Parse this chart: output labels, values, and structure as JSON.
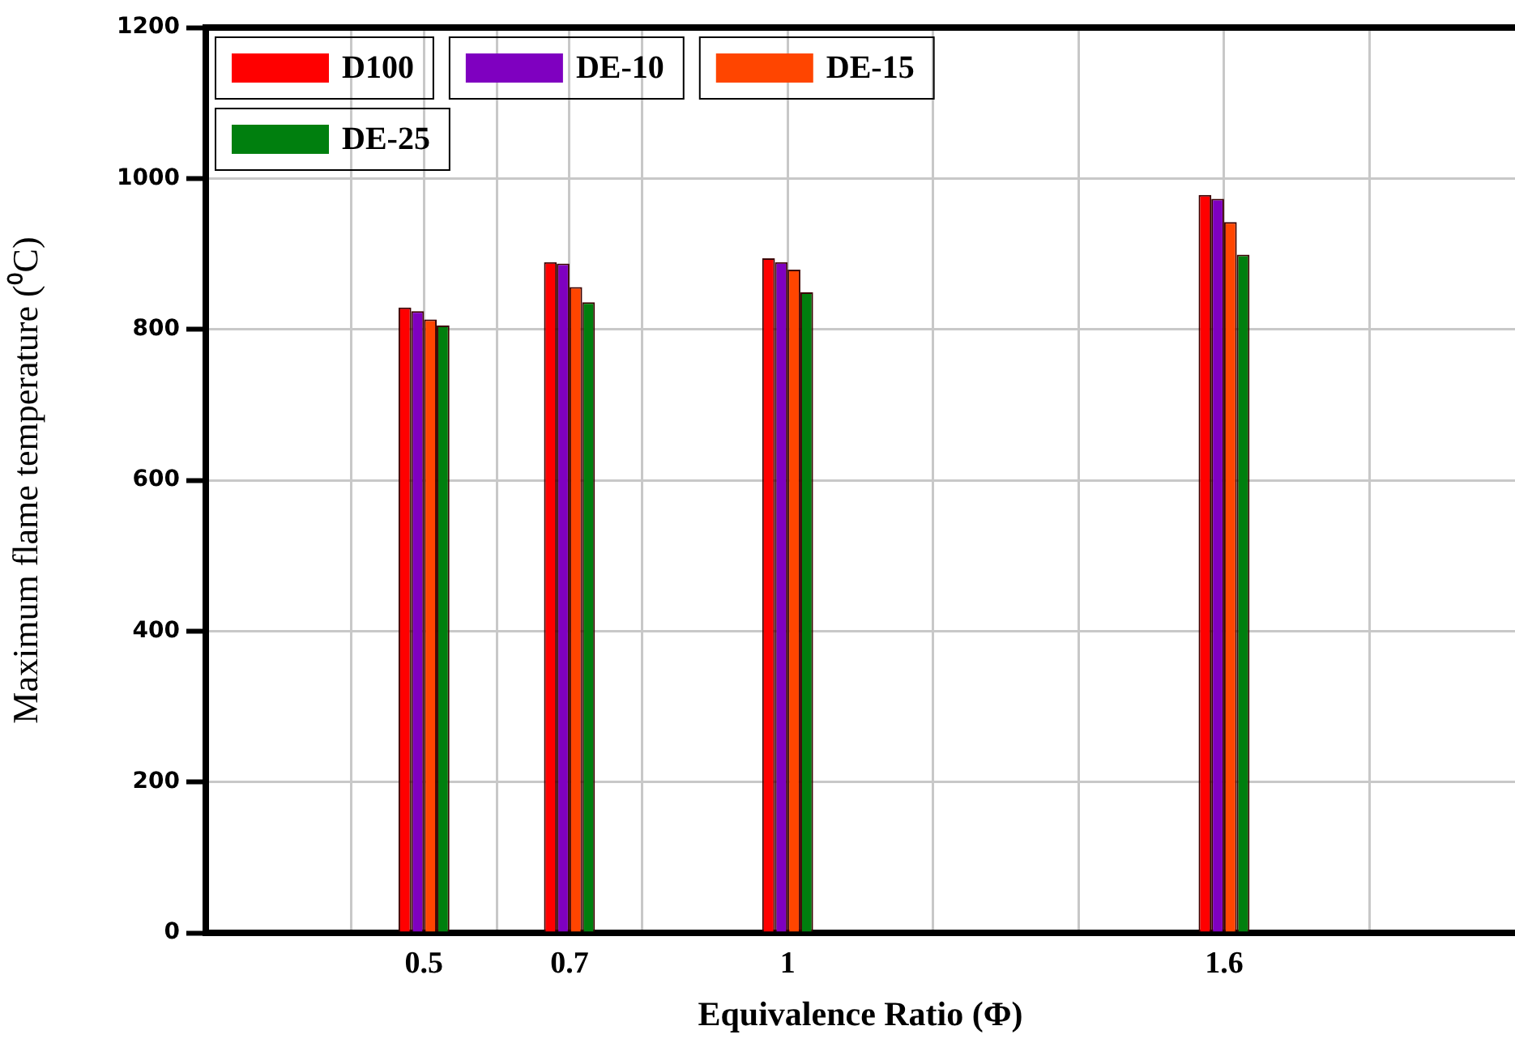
{
  "chart_data": {
    "type": "bar",
    "xlabel": "Equivalence Ratio (Φ)",
    "ylabel": "Maximum flame temperature (⁰C)",
    "x": [
      0.5,
      0.7,
      1,
      1.6
    ],
    "series": [
      {
        "name": "D100",
        "color": "#ff0000",
        "values": [
          829,
          889,
          894,
          978
        ]
      },
      {
        "name": "DE-10",
        "color": "#7f00c0",
        "values": [
          824,
          887,
          889,
          973
        ]
      },
      {
        "name": "DE-15",
        "color": "#ff4500",
        "values": [
          813,
          856,
          879,
          942
        ]
      },
      {
        "name": "DE-25",
        "color": "#007f0e",
        "values": [
          805,
          836,
          849,
          899
        ]
      }
    ],
    "xlim": [
      0.2,
      2.0
    ],
    "xticks": [
      {
        "value": 0.4,
        "label": null
      },
      {
        "value": 0.5,
        "label": "0.5"
      },
      {
        "value": 0.6,
        "label": null
      },
      {
        "value": 0.7,
        "label": "0.7"
      },
      {
        "value": 0.8,
        "label": null
      },
      {
        "value": 1,
        "label": "1"
      },
      {
        "value": 1.2,
        "label": null
      },
      {
        "value": 1.4,
        "label": null
      },
      {
        "value": 1.6,
        "label": "1.6"
      },
      {
        "value": 1.8,
        "label": null
      }
    ],
    "ylim": [
      0,
      1200
    ],
    "yticks": [
      0,
      200,
      400,
      600,
      800,
      1000,
      1200
    ],
    "grid": true,
    "legend": "top left"
  }
}
